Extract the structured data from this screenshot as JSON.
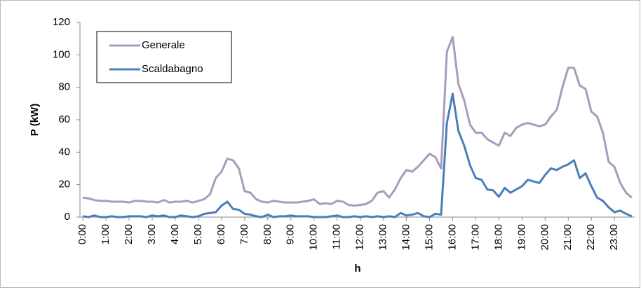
{
  "chart_data": {
    "type": "line",
    "x_label": "h",
    "y_label": "P (kW)",
    "categories": [
      "0:00",
      null,
      null,
      null,
      "1:00",
      null,
      null,
      null,
      "2:00",
      null,
      null,
      null,
      "3:00",
      null,
      null,
      null,
      "4:00",
      null,
      null,
      null,
      "5:00",
      null,
      null,
      null,
      "6:00",
      null,
      null,
      null,
      "7:00",
      null,
      null,
      null,
      "8:00",
      null,
      null,
      null,
      "9:00",
      null,
      null,
      null,
      "10:00",
      null,
      null,
      null,
      "11:00",
      null,
      null,
      null,
      "12:00",
      null,
      null,
      null,
      "13:00",
      null,
      null,
      null,
      "14:00",
      null,
      null,
      null,
      "15:00",
      null,
      null,
      null,
      "16:00",
      null,
      null,
      null,
      "17:00",
      null,
      null,
      null,
      "18:00",
      null,
      null,
      null,
      "19:00",
      null,
      null,
      null,
      "20:00",
      null,
      null,
      null,
      "21:00",
      null,
      null,
      null,
      "22:00",
      null,
      null,
      null,
      "23:00",
      null,
      null,
      null
    ],
    "series": [
      {
        "name": "Generale",
        "color": "#a99bbd",
        "values": [
          12,
          11.5,
          10.5,
          10,
          10,
          9.5,
          9.5,
          9.5,
          9,
          10,
          10,
          9.5,
          9.5,
          9,
          10.5,
          9,
          9.5,
          9.5,
          10,
          9,
          10,
          11,
          14,
          24,
          28,
          36,
          35,
          30,
          16,
          15,
          11,
          9.5,
          9,
          10,
          9.5,
          9,
          9,
          9,
          9.5,
          10,
          11,
          8,
          8.5,
          8,
          10,
          9.5,
          7.5,
          7,
          7.5,
          8,
          10,
          15,
          16,
          12,
          17,
          24,
          29,
          28,
          31,
          35,
          39,
          37,
          30,
          102,
          111,
          82,
          72,
          57,
          52,
          52,
          48,
          46,
          44,
          52,
          50,
          55,
          57,
          58,
          57,
          56,
          57,
          62,
          66,
          80,
          92,
          92,
          81,
          79,
          65,
          62,
          52,
          34,
          31,
          21,
          15,
          12
        ]
      },
      {
        "name": "Scaldabagno",
        "color": "#4a7ebb",
        "values": [
          0.5,
          0,
          1,
          0,
          0,
          0.5,
          0,
          0,
          0.5,
          0.5,
          0.5,
          0,
          1,
          0.5,
          1,
          0,
          0,
          1,
          0.5,
          0,
          0.5,
          2,
          2.5,
          3,
          7,
          9.5,
          5,
          4.5,
          2,
          1.5,
          0.5,
          0,
          1.5,
          0,
          0.5,
          0.5,
          1,
          0.5,
          0.5,
          0.5,
          0,
          0,
          0,
          0.5,
          1,
          0,
          0,
          0.5,
          0,
          0.5,
          0,
          0.5,
          0,
          0.5,
          0,
          2.5,
          1,
          1.5,
          2.5,
          0.5,
          0,
          2,
          1.5,
          58,
          76,
          53,
          44,
          32,
          24,
          23,
          17,
          16.5,
          12.5,
          18,
          15,
          17,
          19,
          23,
          22,
          21,
          26,
          30,
          29,
          31,
          32.5,
          35,
          24,
          27,
          19,
          12,
          10,
          6,
          3,
          4,
          2,
          0.5
        ]
      }
    ],
    "ylim": [
      0,
      120
    ],
    "yticks": [
      0,
      20,
      40,
      60,
      80,
      100,
      120
    ],
    "legend": "top-left"
  }
}
